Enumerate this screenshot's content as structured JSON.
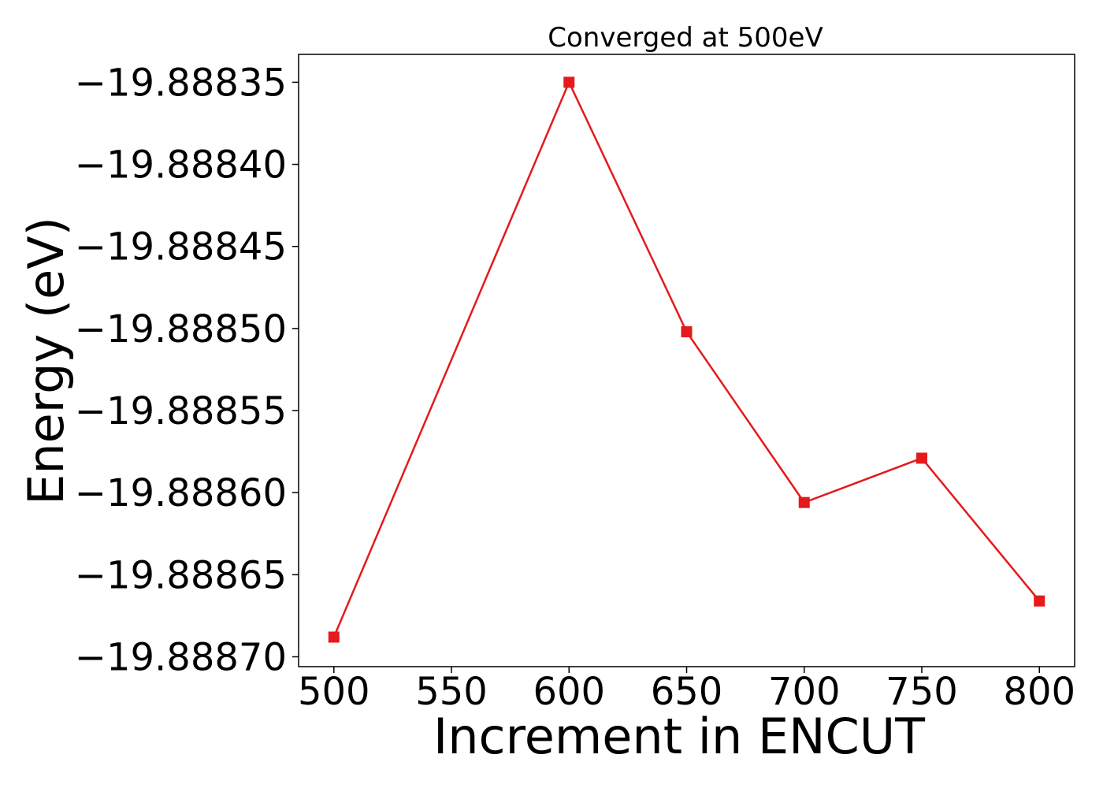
{
  "chart_data": {
    "type": "line",
    "title": "Converged at 500eV",
    "xlabel": "Increment in ENCUT",
    "ylabel": "Energy (eV)",
    "x": [
      500,
      600,
      650,
      700,
      750,
      800
    ],
    "series": [
      {
        "color": "#e41a1c",
        "marker": "square",
        "values": [
          -19.888688,
          -19.88835,
          -19.888502,
          -19.888606,
          -19.888579,
          -19.888666
        ]
      }
    ],
    "xticks": [
      500,
      550,
      600,
      650,
      700,
      750,
      800
    ],
    "xtick_labels": [
      "500",
      "550",
      "600",
      "650",
      "700",
      "750",
      "800"
    ],
    "yticks": [
      -19.88835,
      -19.8884,
      -19.88845,
      -19.8885,
      -19.88855,
      -19.8886,
      -19.88865,
      -19.8887
    ],
    "ytick_labels": [
      "−19.88835",
      "−19.88840",
      "−19.88845",
      "−19.88850",
      "−19.88855",
      "−19.88860",
      "−19.88865",
      "−19.88870"
    ],
    "xlim": [
      485,
      815
    ],
    "ylim": [
      -19.888706,
      -19.888333
    ],
    "grid": false,
    "legend": "none"
  }
}
